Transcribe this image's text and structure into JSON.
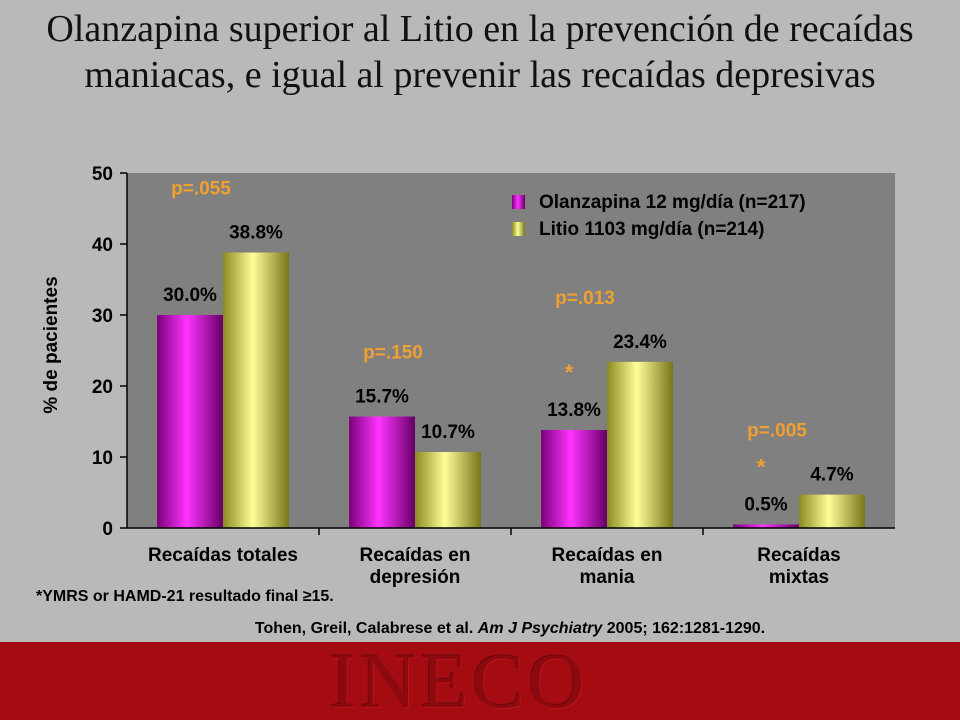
{
  "title": "Olanzapina superior al Litio en la prevención de recaídas maniacas, e igual al prevenir las recaídas depresivas",
  "colors": {
    "olanzapina": "#cc00cc",
    "litio": "#e6e65a",
    "pvalue": "#f0a030",
    "plot_bg": "#808080"
  },
  "chart_data": {
    "type": "bar",
    "ylabel": "% de pacientes",
    "ylim": [
      0,
      50
    ],
    "yticks": [
      "0",
      "10",
      "20",
      "30",
      "40",
      "50"
    ],
    "categories": [
      "Recaídas totales",
      "Recaídas en depresión",
      "Recaídas en mania",
      "Recaídas mixtas"
    ],
    "series": [
      {
        "name": "Olanzapina 12 mg/día (n=217)",
        "values": [
          30.0,
          15.7,
          13.8,
          0.5
        ],
        "labels": [
          "30.0%",
          "15.7%",
          "13.8%",
          "0.5%"
        ]
      },
      {
        "name": "Litio 1103 mg/día (n=214)",
        "values": [
          38.8,
          10.7,
          23.4,
          4.7
        ],
        "labels": [
          "38.8%",
          "10.7%",
          "23.4%",
          "4.7%"
        ]
      }
    ],
    "p_values": [
      "p=.055",
      "p=.150",
      "p=.013",
      "p=.005"
    ],
    "significance_marks": [
      "",
      "",
      "*",
      "*"
    ],
    "legend_position": "top-right"
  },
  "footnote": "*YMRS or HAMD-21 resultado final ≥15.",
  "citation": {
    "authors": "Tohen, Greil, Calabrese et al.",
    "journal": "Am J Psychiatry",
    "rest": "2005; 162:1281-1290."
  },
  "footer_brand": "INECO"
}
